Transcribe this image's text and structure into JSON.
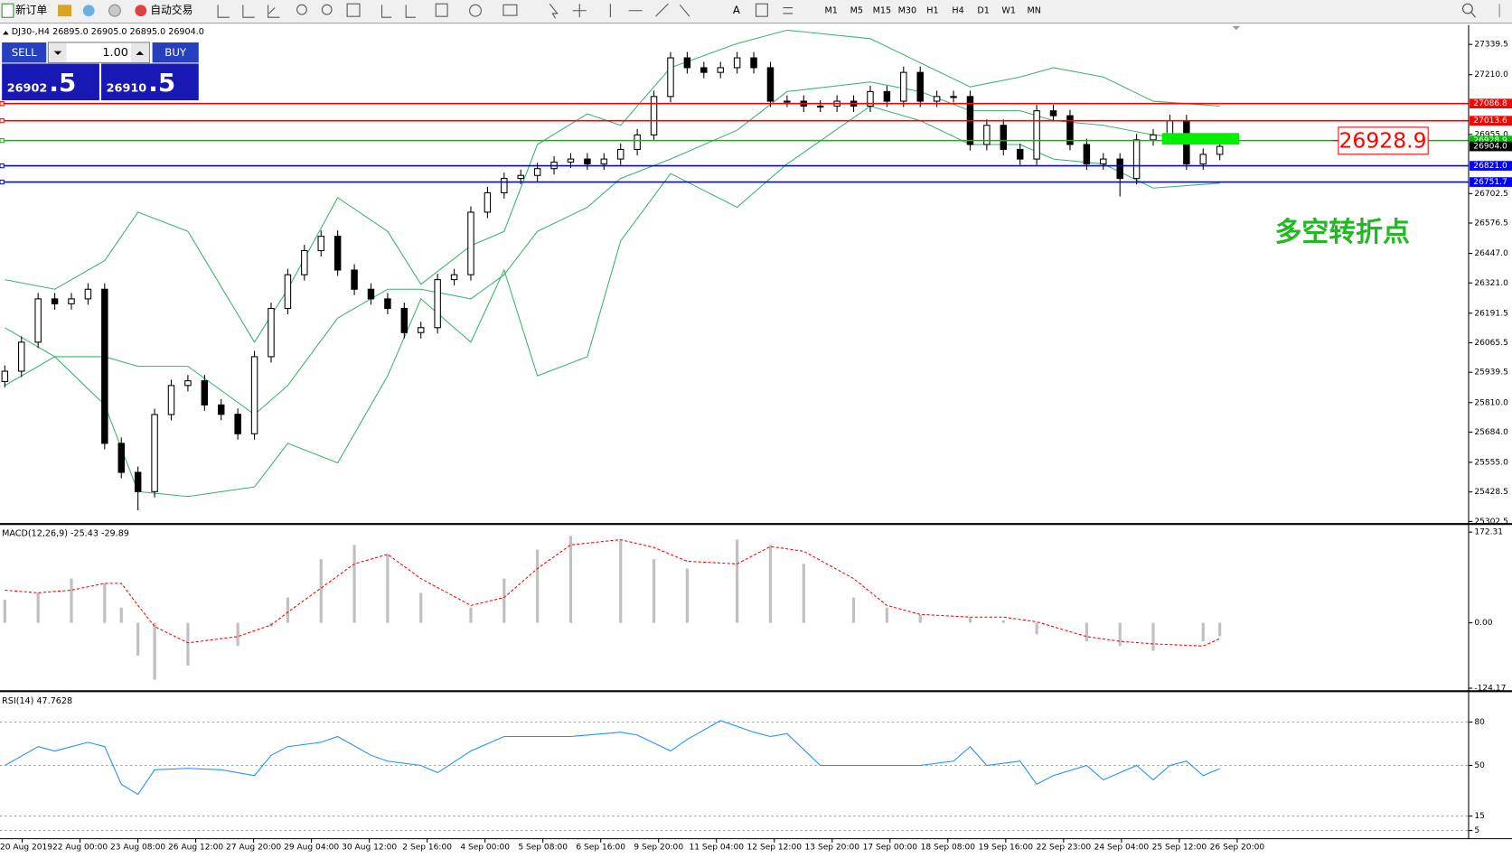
{
  "toolbar": {
    "new_order": "新订单",
    "auto_trading": "自动交易",
    "timeframes": [
      "M1",
      "M5",
      "M15",
      "M30",
      "H1",
      "H4",
      "D1",
      "W1",
      "MN"
    ]
  },
  "trade_panel": {
    "sell": "SELL",
    "buy": "BUY",
    "lots": "1.00",
    "sell_big": "26902",
    "sell_small": ".5",
    "buy_big": "26910",
    "buy_small": ".5"
  },
  "time_axis": [
    "20 Aug 2019",
    "22 Aug 00:00",
    "23 Aug 08:00",
    "26 Aug 12:00",
    "27 Aug 20:00",
    "29 Aug 04:00",
    "30 Aug 12:00",
    "2 Sep 16:00",
    "4 Sep 00:00",
    "5 Sep 08:00",
    "6 Sep 16:00",
    "9 Sep 20:00",
    "11 Sep 04:00",
    "12 Sep 12:00",
    "13 Sep 20:00",
    "17 Sep 00:00",
    "18 Sep 08:00",
    "19 Sep 16:00",
    "22 Sep 23:00",
    "24 Sep 04:00",
    "25 Sep 12:00",
    "26 Sep 20:00"
  ],
  "chart_data": [
    {
      "type": "candlestick",
      "title": "DJ30-,H4  26895.0 26905.0 26895.0 26904.0",
      "ylim": [
        25298,
        27422
      ],
      "yticks": [
        27339.5,
        {
          "value": 27210,
          "label": "27210.0"
        },
        {
          "value": 26955,
          "label": "26955.0"
        },
        26702.5,
        26576.5,
        {
          "value": 26447,
          "label": "26447.0"
        },
        {
          "value": 26321,
          "label": "26321.0"
        },
        26191.5,
        26065.5,
        25939.5,
        {
          "value": 25810,
          "label": "25810.0"
        },
        {
          "value": 25684,
          "label": "25684.0"
        },
        {
          "value": 25555,
          "label": "25555.0"
        },
        25428.5,
        25302.5
      ],
      "levels": [
        {
          "price": 27086.8,
          "color": "#ff0000"
        },
        {
          "price": 27013.6,
          "color": "#ff0000"
        },
        {
          "price": 26928.9,
          "color": "#00c000"
        },
        {
          "price": {
            "value": 26821,
            "label": "26821.0"
          },
          "color": "#0000ff"
        },
        {
          "price": 26751.7,
          "color": "#0000ff"
        }
      ],
      "current_price": {
        "value": 26904,
        "label": "26904.0"
      },
      "annotation": 26928.9,
      "note": "多空转折点",
      "candles": {
        "open": [
          25900,
          25944,
          26068,
          26253,
          26232,
          26253,
          26294,
          25636,
          25512,
          25430,
          25759,
          25883,
          25903,
          25800,
          25760,
          25677,
          26006,
          26212,
          26356,
          26459,
          26520,
          26376,
          26294,
          26253,
          26212,
          26109,
          26130,
          26335,
          26356,
          26623,
          26706,
          26767,
          26780,
          26809,
          26837,
          26850,
          26829,
          26850,
          26891,
          26953,
          27117,
          27282,
          27240,
          27220,
          27240,
          27282,
          27240,
          27097,
          27097,
          27076,
          27076,
          27097,
          27076,
          27138,
          27097,
          27220,
          27097,
          27117,
          27117,
          26912,
          26994,
          26891,
          26850,
          27056,
          27035,
          26912,
          26829,
          26850,
          26767,
          26932,
          26953,
          27014,
          26829,
          26870
        ],
        "high": [
          25969,
          26093,
          26278,
          26278,
          26278,
          26319,
          26319,
          25661,
          25537,
          25784,
          25908,
          25928,
          25928,
          25825,
          25785,
          26031,
          26237,
          26381,
          26484,
          26545,
          26545,
          26401,
          26319,
          26278,
          26237,
          26155,
          26360,
          26381,
          26648,
          26731,
          26792,
          26805,
          26834,
          26862,
          26875,
          26875,
          26875,
          26916,
          26978,
          27142,
          27307,
          27307,
          27265,
          27265,
          27307,
          27307,
          27265,
          27122,
          27122,
          27101,
          27122,
          27122,
          27163,
          27163,
          27245,
          27245,
          27142,
          27142,
          27142,
          27019,
          27019,
          26916,
          27081,
          27081,
          27060,
          26937,
          26875,
          26875,
          26957,
          26978,
          27039,
          27039,
          26895,
          26929
        ],
        "low": [
          25875,
          25919,
          26043,
          26207,
          26207,
          26228,
          25611,
          25487,
          25350,
          25405,
          25734,
          25858,
          25775,
          25735,
          25652,
          25652,
          25981,
          26187,
          26331,
          26434,
          26351,
          26269,
          26228,
          26187,
          26084,
          26084,
          26105,
          26310,
          26331,
          26598,
          26681,
          26742,
          26755,
          26784,
          26812,
          26804,
          26804,
          26825,
          26866,
          26928,
          27092,
          27215,
          27195,
          27195,
          27215,
          27215,
          27072,
          27072,
          27051,
          27051,
          27051,
          27051,
          27051,
          27072,
          27072,
          27072,
          27072,
          27092,
          26887,
          26887,
          26866,
          26825,
          26825,
          27010,
          26887,
          26804,
          26804,
          26690,
          26742,
          26907,
          26928,
          26804,
          26804,
          26845
        ],
        "close": [
          25944,
          26068,
          26253,
          26232,
          26253,
          26294,
          25636,
          25512,
          25430,
          25759,
          25883,
          25903,
          25800,
          25760,
          25677,
          26006,
          26212,
          26356,
          26459,
          26520,
          26376,
          26294,
          26253,
          26212,
          26109,
          26130,
          26335,
          26356,
          26623,
          26706,
          26767,
          26780,
          26809,
          26837,
          26850,
          26829,
          26850,
          26891,
          26953,
          27117,
          27282,
          27240,
          27220,
          27240,
          27282,
          27240,
          27097,
          27097,
          27076,
          27076,
          27097,
          27076,
          27138,
          27097,
          27220,
          27097,
          27117,
          27117,
          26912,
          26994,
          26891,
          26850,
          27056,
          27035,
          26912,
          26829,
          26850,
          26767,
          26932,
          26953,
          27014,
          26829,
          26870,
          26904
        ]
      },
      "bands": {
        "color": "#3cb371",
        "x": [
          0,
          3,
          6,
          8,
          11,
          15,
          17,
          20,
          23,
          25,
          28,
          30,
          32,
          35,
          37,
          40,
          44,
          47,
          52,
          55,
          58,
          61,
          63,
          66,
          69,
          73
        ],
        "upper": [
          26335,
          26294,
          26417,
          26623,
          26541,
          26068,
          26294,
          26685,
          26541,
          26315,
          26480,
          26541,
          26912,
          27043,
          26994,
          27240,
          27343,
          27400,
          27364,
          27261,
          27158,
          27200,
          27240,
          27200,
          27097,
          27076
        ],
        "middle": [
          26130,
          26006,
          26006,
          25965,
          25965,
          25759,
          25883,
          26171,
          26294,
          26294,
          26253,
          26356,
          26541,
          26644,
          26767,
          26850,
          26973,
          27138,
          27179,
          27138,
          27056,
          27056,
          27014,
          26994,
          26953,
          26932
        ],
        "lower": [
          25883,
          26006,
          25800,
          25430,
          25409,
          25450,
          25636,
          25553,
          25924,
          26253,
          26068,
          26376,
          25924,
          26006,
          26500,
          26788,
          26644,
          26829,
          27076,
          27014,
          26912,
          26912,
          26850,
          26829,
          26726,
          26747
        ]
      }
    },
    {
      "type": "macd",
      "label": "MACD(12,26,9) -25.43 -29.89",
      "ylim": [
        -128,
        185
      ],
      "yticks": [
        172.31,
        {
          "value": 0,
          "label": "0.00"
        },
        -124.17
      ],
      "x": [
        0,
        2,
        4,
        6,
        7,
        8,
        9,
        11,
        14,
        16,
        17,
        19,
        21,
        23,
        25,
        28,
        30,
        32,
        34,
        37,
        39,
        41,
        44,
        46,
        48,
        51,
        53,
        55,
        58,
        60,
        62,
        65,
        67,
        69,
        72,
        73
      ],
      "histogram": {
        "color": "#c0c0c0",
        "values": [
          44,
          57,
          84,
          75,
          29,
          -62,
          -108,
          -81,
          -44,
          -7,
          48,
          121,
          148,
          130,
          57,
          29,
          84,
          139,
          165,
          158,
          121,
          103,
          158,
          148,
          112,
          48,
          29,
          15,
          11,
          5,
          -22,
          -35,
          -44,
          -53,
          -35,
          -25.43
        ]
      },
      "signal": {
        "color": "#ff0000",
        "values": [
          62,
          57,
          62,
          75,
          75,
          33,
          -7,
          -38,
          -26,
          -4,
          20,
          66,
          112,
          130,
          84,
          33,
          48,
          103,
          148,
          158,
          143,
          117,
          112,
          145,
          136,
          84,
          33,
          16,
          11,
          11,
          2,
          -26,
          -35,
          -40,
          -44,
          -29.89
        ]
      }
    },
    {
      "type": "line",
      "label": "RSI(14) 47.7628",
      "color": "#1e90ff",
      "ylim": [
        0,
        100
      ],
      "yticks": [
        80,
        50,
        15,
        5
      ],
      "x": [
        0,
        2,
        3,
        5,
        6,
        7,
        8,
        9,
        11,
        13,
        15,
        16,
        17,
        19,
        20,
        22,
        23,
        25,
        26,
        28,
        30,
        32,
        34,
        37,
        38,
        40,
        41,
        43,
        45,
        46,
        47,
        49,
        51,
        53,
        55,
        57,
        58,
        59,
        61,
        62,
        63,
        65,
        66,
        68,
        69,
        70,
        71,
        72,
        73
      ],
      "values": [
        50,
        63,
        60,
        66,
        63,
        37,
        30,
        47,
        48,
        47,
        43,
        57,
        63,
        66,
        70,
        57,
        53,
        50,
        45,
        60,
        70,
        70,
        70,
        73,
        71,
        60,
        68,
        81,
        73,
        70,
        72,
        50,
        50,
        50,
        50,
        53,
        63,
        50,
        53,
        37,
        43,
        50,
        40,
        50,
        40,
        50,
        53,
        43,
        47.7628
      ]
    }
  ]
}
